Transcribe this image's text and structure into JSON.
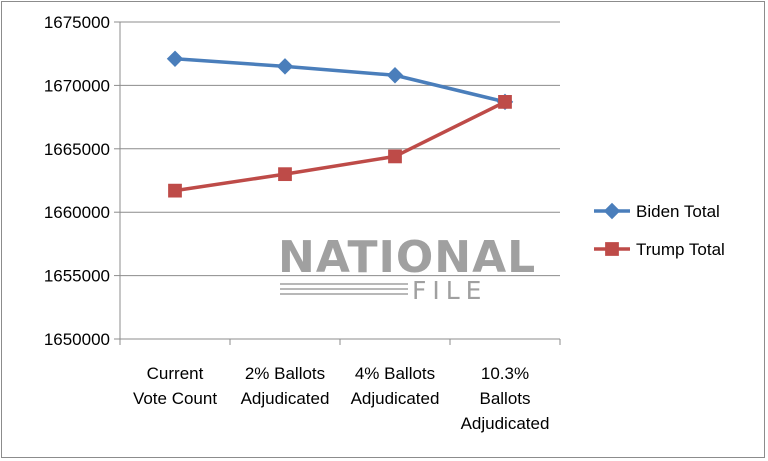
{
  "chart_data": {
    "type": "line",
    "categories": [
      [
        "Current",
        "Vote Count"
      ],
      [
        "2% Ballots",
        "Adjudicated"
      ],
      [
        "4% Ballots",
        "Adjudicated"
      ],
      [
        "10.3%",
        "Ballots",
        "Adjudicated"
      ]
    ],
    "series": [
      {
        "name": "Biden Total",
        "color": "#4a7ebb",
        "marker": "diamond",
        "values": [
          1672100,
          1671500,
          1670800,
          1668700
        ]
      },
      {
        "name": "Trump Total",
        "color": "#be4b48",
        "marker": "square",
        "values": [
          1661700,
          1663000,
          1664400,
          1668700
        ]
      }
    ],
    "yticks": [
      "1650000",
      "1655000",
      "1660000",
      "1665000",
      "1670000",
      "1675000"
    ],
    "ylim": [
      1650000,
      1675000
    ],
    "grid": true,
    "legend_position": "right"
  },
  "watermark": {
    "line1": "NATIONAL",
    "line2": "FILE"
  }
}
